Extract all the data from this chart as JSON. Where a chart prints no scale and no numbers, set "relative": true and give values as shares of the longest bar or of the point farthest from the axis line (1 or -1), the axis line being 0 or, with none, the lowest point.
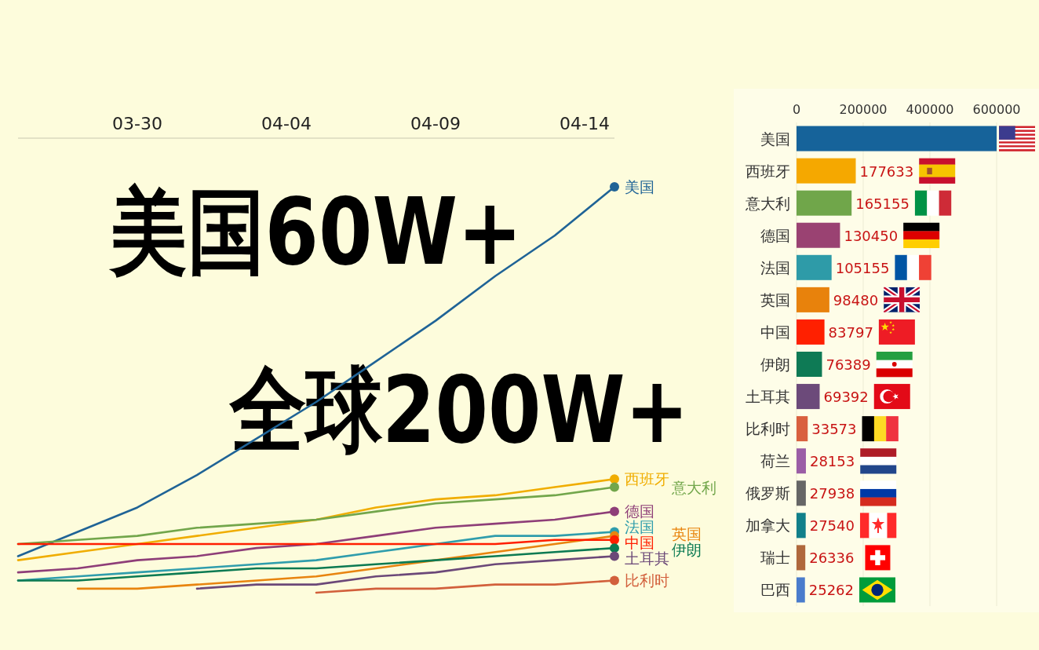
{
  "chart_data": [
    {
      "type": "line",
      "relative": true,
      "tick_labels": "x",
      "x": [
        "--03-26",
        "--03-28",
        "--03-30",
        "--04-01",
        "--04-03",
        "--04-05",
        "--04-07",
        "--04-09",
        "--04-11",
        "--04-13",
        "--04-15"
      ],
      "xlim": [
        "--03-26",
        "--04-15"
      ],
      "xticks": [
        {
          "value": "--03-30",
          "label": "03-30"
        },
        {
          "value": "--04-04",
          "label": "04-04"
        },
        {
          "value": "--04-09",
          "label": "04-09"
        },
        {
          "value": "--04-14",
          "label": "04-14"
        }
      ],
      "series": [
        {
          "name": "美国",
          "color": "#1f6396",
          "values": [
            0.09,
            0.15,
            0.21,
            0.29,
            0.38,
            0.47,
            0.57,
            0.67,
            0.78,
            0.88,
            1
          ]
        },
        {
          "name": "西班牙",
          "color": "#f0ad00",
          "values": [
            0.08,
            0.1,
            0.12,
            0.14,
            0.16,
            0.18,
            0.21,
            0.23,
            0.24,
            0.26,
            0.28
          ]
        },
        {
          "name": "意大利",
          "color": "#72a64b",
          "values": [
            0.12,
            0.13,
            0.14,
            0.16,
            0.17,
            0.18,
            0.2,
            0.22,
            0.23,
            0.24,
            0.26
          ]
        },
        {
          "name": "德国",
          "color": "#8e3e78",
          "values": [
            0.05,
            0.06,
            0.08,
            0.09,
            0.11,
            0.12,
            0.14,
            0.16,
            0.17,
            0.18,
            0.2
          ]
        },
        {
          "name": "法国",
          "color": "#2f9dac",
          "values": [
            0.03,
            0.04,
            0.05,
            0.06,
            0.07,
            0.08,
            0.1,
            0.12,
            0.14,
            0.14,
            0.15
          ]
        },
        {
          "name": "英国",
          "color": "#e8840f",
          "values": [
            null,
            0.01,
            0.01,
            0.02,
            0.03,
            0.04,
            0.06,
            0.08,
            0.1,
            0.12,
            0.14
          ]
        },
        {
          "name": "中国",
          "color": "#ff1e00",
          "values": [
            0.12,
            0.12,
            0.12,
            0.12,
            0.12,
            0.12,
            0.12,
            0.12,
            0.12,
            0.13,
            0.13
          ]
        },
        {
          "name": "伊朗",
          "color": "#0b7a52",
          "values": [
            0.03,
            0.03,
            0.04,
            0.05,
            0.06,
            0.06,
            0.07,
            0.08,
            0.09,
            0.1,
            0.11
          ]
        },
        {
          "name": "土耳其",
          "color": "#6b4878",
          "values": [
            null,
            null,
            null,
            0.01,
            0.02,
            0.02,
            0.04,
            0.05,
            0.07,
            0.08,
            0.09
          ]
        },
        {
          "name": "比利时",
          "color": "#d2603c",
          "values": [
            null,
            null,
            null,
            null,
            null,
            0,
            0.01,
            0.01,
            0.02,
            0.02,
            0.03
          ]
        }
      ],
      "annotations": [
        "美国60W+",
        "全球200W+"
      ]
    },
    {
      "type": "bar",
      "orientation": "horizontal",
      "categories": [
        "美国",
        "西班牙",
        "意大利",
        "德国",
        "法国",
        "英国",
        "中国",
        "伊朗",
        "土耳其",
        "比利时",
        "荷兰",
        "俄罗斯",
        "加拿大",
        "瑞士",
        "巴西"
      ],
      "values": [
        600000,
        177633,
        165155,
        130450,
        105155,
        98480,
        83797,
        76389,
        69392,
        33573,
        28153,
        27938,
        27540,
        26336,
        25262
      ],
      "colors": [
        "#16639a",
        "#f5a800",
        "#70a64a",
        "#9a4272",
        "#2e9ba8",
        "#e8820c",
        "#ff2000",
        "#0e7a55",
        "#6c4a7a",
        "#d9603e",
        "#9b5ea6",
        "#666666",
        "#11808a",
        "#b0683c",
        "#4a7ccc"
      ],
      "value_labels": [
        null,
        "177633",
        "165155",
        "130450",
        "105155",
        "98480",
        "83797",
        "76389",
        "69392",
        "33573",
        "28153",
        "27938",
        "27540",
        "26336",
        "25262"
      ],
      "xlim": [
        0,
        600000
      ],
      "xticks": [
        0,
        200000,
        400000,
        600000
      ],
      "grid": "x"
    }
  ]
}
